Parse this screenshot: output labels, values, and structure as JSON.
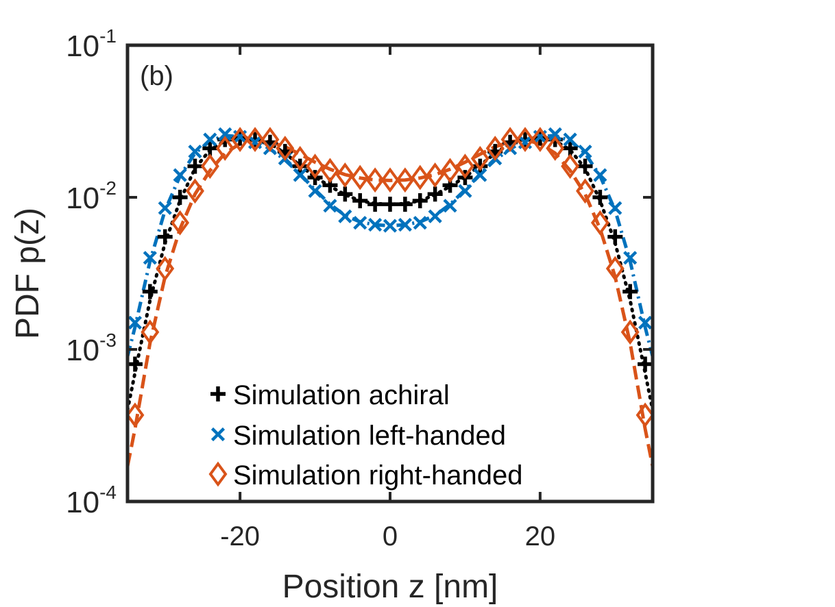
{
  "chart_data": {
    "type": "scatter",
    "panel_label": "(b)",
    "xlabel": "Position z [nm]",
    "ylabel": "PDF p(z)",
    "xlim": [
      -35,
      35
    ],
    "ylim": [
      0.0001,
      0.1
    ],
    "yscale": "log",
    "xticks": [
      -20,
      0,
      20
    ],
    "xtick_labels": [
      "-20",
      "0",
      "20"
    ],
    "yticks": [
      0.0001,
      0.001,
      0.01,
      0.1
    ],
    "ytick_labels": [
      {
        "base": "10",
        "exp": "-4"
      },
      {
        "base": "10",
        "exp": "-3"
      },
      {
        "base": "10",
        "exp": "-2"
      },
      {
        "base": "10",
        "exp": "-1"
      }
    ],
    "grid": false,
    "legend_position": "lower-center",
    "series": [
      {
        "name": "Simulation achiral",
        "marker": "plus",
        "line_style": "dotted",
        "color": "#000000",
        "x": [
          -34,
          -32,
          -30,
          -28,
          -26,
          -24,
          -22,
          -20,
          -18,
          -16,
          -14,
          -12,
          -10,
          -8,
          -6,
          -4,
          -2,
          0,
          2,
          4,
          6,
          8,
          10,
          12,
          14,
          16,
          18,
          20,
          22,
          24,
          26,
          28,
          30,
          32,
          34
        ],
        "y": [
          0.0008,
          0.0024,
          0.0055,
          0.01,
          0.016,
          0.021,
          0.024,
          0.0245,
          0.024,
          0.023,
          0.02,
          0.016,
          0.0135,
          0.012,
          0.0105,
          0.0095,
          0.009,
          0.009,
          0.009,
          0.0095,
          0.0105,
          0.012,
          0.0135,
          0.016,
          0.02,
          0.023,
          0.024,
          0.0245,
          0.024,
          0.021,
          0.016,
          0.01,
          0.0055,
          0.0024,
          0.0008
        ],
        "fit_x": [
          -35,
          -34,
          -32,
          -30,
          -28,
          -26,
          -24,
          -22,
          -20,
          -18,
          -16,
          -14,
          -12,
          -10,
          -8,
          -6,
          -4,
          -2,
          0,
          2,
          4,
          6,
          8,
          10,
          12,
          14,
          16,
          18,
          20,
          22,
          24,
          26,
          28,
          30,
          32,
          34,
          35
        ],
        "fit_y": [
          0.0004,
          0.0007,
          0.0021,
          0.005,
          0.0095,
          0.0155,
          0.0205,
          0.0235,
          0.0245,
          0.024,
          0.0225,
          0.0195,
          0.0162,
          0.0136,
          0.0118,
          0.0104,
          0.0095,
          0.0091,
          0.009,
          0.0091,
          0.0095,
          0.0104,
          0.0118,
          0.0136,
          0.0162,
          0.0195,
          0.0225,
          0.024,
          0.0245,
          0.0235,
          0.0205,
          0.0155,
          0.0095,
          0.005,
          0.0021,
          0.0007,
          0.0004
        ]
      },
      {
        "name": "Simulation left-handed",
        "marker": "x",
        "line_style": "dashdot",
        "color": "#0072BD",
        "x": [
          -34,
          -32,
          -30,
          -28,
          -26,
          -24,
          -22,
          -20,
          -18,
          -16,
          -14,
          -12,
          -10,
          -8,
          -6,
          -4,
          -2,
          0,
          2,
          4,
          6,
          8,
          10,
          12,
          14,
          16,
          18,
          20,
          22,
          24,
          26,
          28,
          30,
          32,
          34
        ],
        "y": [
          0.0015,
          0.004,
          0.0085,
          0.014,
          0.02,
          0.024,
          0.026,
          0.025,
          0.023,
          0.021,
          0.018,
          0.014,
          0.011,
          0.0088,
          0.0075,
          0.0068,
          0.0066,
          0.0065,
          0.0066,
          0.0068,
          0.0075,
          0.0088,
          0.011,
          0.014,
          0.018,
          0.021,
          0.023,
          0.025,
          0.026,
          0.024,
          0.02,
          0.014,
          0.0085,
          0.004,
          0.0015
        ],
        "fit_x": [
          -35,
          -34,
          -32,
          -30,
          -28,
          -26,
          -24,
          -22,
          -20,
          -18,
          -16,
          -14,
          -12,
          -10,
          -8,
          -6,
          -4,
          -2,
          0,
          2,
          4,
          6,
          8,
          10,
          12,
          14,
          16,
          18,
          20,
          22,
          24,
          26,
          28,
          30,
          32,
          34,
          35
        ],
        "fit_y": [
          0.0009,
          0.0014,
          0.0038,
          0.0082,
          0.0138,
          0.0195,
          0.0235,
          0.0255,
          0.025,
          0.0235,
          0.0208,
          0.0176,
          0.0142,
          0.0112,
          0.009,
          0.0076,
          0.0069,
          0.0066,
          0.0065,
          0.0066,
          0.0069,
          0.0076,
          0.009,
          0.0112,
          0.0142,
          0.0176,
          0.0208,
          0.0235,
          0.025,
          0.0255,
          0.0235,
          0.0195,
          0.0138,
          0.0082,
          0.0038,
          0.0014,
          0.0009
        ]
      },
      {
        "name": "Simulation right-handed",
        "marker": "diamond",
        "line_style": "dashed",
        "color": "#D95319",
        "x": [
          -34,
          -32,
          -30,
          -28,
          -26,
          -24,
          -22,
          -20,
          -18,
          -16,
          -14,
          -12,
          -10,
          -8,
          -6,
          -4,
          -2,
          0,
          2,
          4,
          6,
          8,
          10,
          12,
          14,
          16,
          18,
          20,
          22,
          24,
          26,
          28,
          30,
          32,
          34
        ],
        "y": [
          0.00037,
          0.0013,
          0.0034,
          0.0068,
          0.011,
          0.016,
          0.021,
          0.024,
          0.024,
          0.024,
          0.021,
          0.018,
          0.016,
          0.015,
          0.014,
          0.0135,
          0.013,
          0.013,
          0.013,
          0.0135,
          0.014,
          0.015,
          0.016,
          0.018,
          0.021,
          0.024,
          0.024,
          0.024,
          0.021,
          0.016,
          0.011,
          0.0068,
          0.0034,
          0.0013,
          0.00037
        ],
        "fit_x": [
          -35,
          -34,
          -32,
          -30,
          -28,
          -26,
          -24,
          -22,
          -20,
          -18,
          -16,
          -14,
          -12,
          -10,
          -8,
          -6,
          -4,
          -2,
          0,
          2,
          4,
          6,
          8,
          10,
          12,
          14,
          16,
          18,
          20,
          22,
          24,
          26,
          28,
          30,
          32,
          34,
          35
        ],
        "fit_y": [
          0.00017,
          0.0003,
          0.0011,
          0.003,
          0.0062,
          0.0105,
          0.015,
          0.0195,
          0.0225,
          0.0238,
          0.0232,
          0.0215,
          0.0192,
          0.017,
          0.0153,
          0.0141,
          0.0134,
          0.013,
          0.0129,
          0.013,
          0.0134,
          0.0141,
          0.0153,
          0.017,
          0.0192,
          0.0215,
          0.0232,
          0.0238,
          0.0225,
          0.0195,
          0.015,
          0.0105,
          0.0062,
          0.003,
          0.0011,
          0.0003,
          0.00017
        ]
      }
    ]
  }
}
